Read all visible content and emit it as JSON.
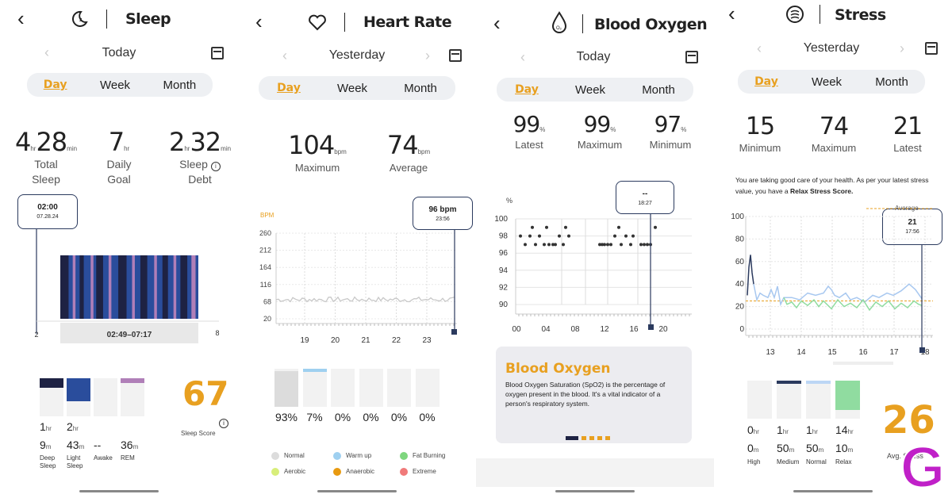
{
  "sleep": {
    "title": "Sleep",
    "date": "Today",
    "tabs": [
      "Day",
      "Week",
      "Month"
    ],
    "stats": [
      {
        "value": "4",
        "unit1": "hr",
        "value2": "28",
        "unit2": "min",
        "label1": "Total",
        "label2": "Sleep"
      },
      {
        "value": "7",
        "unit1": "hr",
        "label1": "Daily",
        "label2": "Goal"
      },
      {
        "value": "2",
        "unit1": "hr",
        "value2": "32",
        "unit2": "min",
        "label1": "Sleep",
        "label2": "Debt"
      }
    ],
    "callout_time": "02:00",
    "callout_date": "07.28.24",
    "range": "02:49–07:17",
    "axis_left": "2",
    "axis_right": "8",
    "breakdown": [
      {
        "h": "1",
        "m": "9",
        "label1": "Deep",
        "label2": "Sleep",
        "color": "#1e2243",
        "fill": 0.25
      },
      {
        "h": "2",
        "m": "43",
        "label1": "Light",
        "label2": "Sleep",
        "color": "#2a4d9c",
        "fill": 0.6
      },
      {
        "h": "",
        "m": "--",
        "label1": "Awake",
        "label2": "",
        "color": "#f2f2f2",
        "fill": 0
      },
      {
        "h": "",
        "m": "36",
        "label1": "REM",
        "label2": "",
        "color": "#b07fb8",
        "fill": 0.13
      }
    ],
    "h_unit": "hr",
    "m_unit": "m",
    "score": "67",
    "score_label": "Sleep Score"
  },
  "heart": {
    "title": "Heart Rate",
    "date": "Yesterday",
    "tabs": [
      "Day",
      "Week",
      "Month"
    ],
    "max_value": "104",
    "max_label": "Maximum",
    "avg_value": "74",
    "avg_label": "Average",
    "unit": "bpm",
    "axis_title": "BPM",
    "y_ticks": [
      "260",
      "212",
      "164",
      "116",
      "68",
      "20"
    ],
    "x_ticks": [
      "19",
      "20",
      "21",
      "22",
      "23"
    ],
    "callout_value": "96 bpm",
    "callout_time": "23:56",
    "zones": [
      {
        "pct": "93%",
        "fill": 0.93,
        "color": "#dcdcdc"
      },
      {
        "pct": "7%",
        "fill": 0.07,
        "color": "#9fd0f0"
      },
      {
        "pct": "0%",
        "fill": 0,
        "color": "#f2f2f2"
      },
      {
        "pct": "0%",
        "fill": 0,
        "color": "#f2f2f2"
      },
      {
        "pct": "0%",
        "fill": 0,
        "color": "#f2f2f2"
      },
      {
        "pct": "0%",
        "fill": 0,
        "color": "#f2f2f2"
      }
    ],
    "legend": [
      {
        "label": "Normal",
        "color": "#dcdcdc"
      },
      {
        "label": "Warm up",
        "color": "#9fd0f0"
      },
      {
        "label": "Fat Burning",
        "color": "#7ed67e"
      },
      {
        "label": "Aerobic",
        "color": "#d8ee7a"
      },
      {
        "label": "Anaerobic",
        "color": "#e89a10"
      },
      {
        "label": "Extreme",
        "color": "#f07a7a"
      }
    ]
  },
  "oxygen": {
    "title": "Blood Oxygen",
    "date": "Today",
    "tabs": [
      "Day",
      "Week",
      "Month"
    ],
    "stats": [
      {
        "value": "99",
        "unit": "%",
        "label": "Latest"
      },
      {
        "value": "99",
        "unit": "%",
        "label": "Maximum"
      },
      {
        "value": "97",
        "unit": "%",
        "label": "Minimum"
      }
    ],
    "axis_title": "%",
    "y_ticks": [
      "100",
      "98",
      "96",
      "94",
      "92",
      "90"
    ],
    "x_ticks": [
      "00",
      "04",
      "08",
      "12",
      "16",
      "20"
    ],
    "callout_value": "--",
    "callout_time": "18:27",
    "info_title": "Blood Oxygen",
    "info_text": "Blood Oxygen Saturation (SpO2) is the percentage of oxygen present in the blood. It's a vital indicator of a person's respiratory system."
  },
  "stress": {
    "title": "Stress",
    "date": "Yesterday",
    "tabs": [
      "Day",
      "Week",
      "Month"
    ],
    "stats": [
      {
        "value": "15",
        "label": "Minimum"
      },
      {
        "value": "74",
        "label": "Maximum"
      },
      {
        "value": "21",
        "label": "Latest"
      }
    ],
    "message_pre": "You are taking good care of your health. As per your latest stress value, you have a ",
    "message_bold": "Relax Stress Score.",
    "avg_label": "Average",
    "y_ticks": [
      "100",
      "80",
      "60",
      "40",
      "20",
      "0"
    ],
    "x_ticks": [
      "13",
      "14",
      "15",
      "16",
      "17",
      "18"
    ],
    "callout_value": "21",
    "callout_time": "17:56",
    "levels": [
      {
        "h": "0",
        "m": "0",
        "label": "High",
        "color": "#f2f2f2",
        "fill": 0
      },
      {
        "h": "1",
        "m": "50",
        "label": "Medium",
        "color": "#2b3a5e",
        "fill": 0.07
      },
      {
        "h": "1",
        "m": "50",
        "label": "Normal",
        "color": "#bcd6f5",
        "fill": 0.07
      },
      {
        "h": "14",
        "m": "10",
        "label": "Relax",
        "color": "#90dca0",
        "fill": 0.78
      }
    ],
    "h_unit": "hr",
    "m_unit": "m",
    "score": "26",
    "score_label": "Avg. Stress"
  },
  "colors": {
    "accent": "#e8a020",
    "navy": "#2b3a5e",
    "segment_bg": "#eef0f3"
  }
}
